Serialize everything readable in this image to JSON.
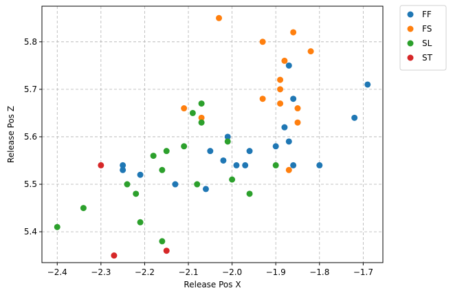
{
  "chart_data": {
    "type": "scatter",
    "title": "",
    "xlabel": "Release Pos X",
    "ylabel": "Release Pos Z",
    "xlim": [
      -2.435,
      -1.655
    ],
    "ylim": [
      5.335,
      5.875
    ],
    "xticks": [
      -2.4,
      -2.3,
      -2.2,
      -2.1,
      -2.0,
      -1.9,
      -1.8,
      -1.7
    ],
    "xtick_labels": [
      "−2.4",
      "−2.3",
      "−2.2",
      "−2.1",
      "−2.0",
      "−1.9",
      "−1.8",
      "−1.7"
    ],
    "yticks": [
      5.4,
      5.5,
      5.6,
      5.7,
      5.8
    ],
    "ytick_labels": [
      "5.4",
      "5.5",
      "5.6",
      "5.7",
      "5.8"
    ],
    "grid": true,
    "legend_position": "outside-top-right",
    "series": [
      {
        "name": "FF",
        "color": "#1f77b4",
        "points": [
          [
            -2.25,
            5.54
          ],
          [
            -2.25,
            5.53
          ],
          [
            -2.21,
            5.52
          ],
          [
            -2.13,
            5.5
          ],
          [
            -2.06,
            5.49
          ],
          [
            -2.05,
            5.57
          ],
          [
            -2.02,
            5.55
          ],
          [
            -2.01,
            5.6
          ],
          [
            -1.99,
            5.54
          ],
          [
            -1.97,
            5.54
          ],
          [
            -1.96,
            5.57
          ],
          [
            -1.9,
            5.58
          ],
          [
            -1.88,
            5.62
          ],
          [
            -1.87,
            5.59
          ],
          [
            -1.87,
            5.75
          ],
          [
            -1.86,
            5.68
          ],
          [
            -1.86,
            5.54
          ],
          [
            -1.8,
            5.54
          ],
          [
            -1.72,
            5.64
          ],
          [
            -1.69,
            5.71
          ]
        ]
      },
      {
        "name": "FS",
        "color": "#ff7f0e",
        "points": [
          [
            -2.11,
            5.66
          ],
          [
            -2.07,
            5.64
          ],
          [
            -2.03,
            5.85
          ],
          [
            -1.93,
            5.8
          ],
          [
            -1.93,
            5.68
          ],
          [
            -1.89,
            5.72
          ],
          [
            -1.89,
            5.7
          ],
          [
            -1.89,
            5.67
          ],
          [
            -1.88,
            5.76
          ],
          [
            -1.87,
            5.53
          ],
          [
            -1.86,
            5.82
          ],
          [
            -1.85,
            5.66
          ],
          [
            -1.85,
            5.63
          ],
          [
            -1.82,
            5.78
          ]
        ]
      },
      {
        "name": "SL",
        "color": "#2ca02c",
        "points": [
          [
            -2.4,
            5.41
          ],
          [
            -2.34,
            5.45
          ],
          [
            -2.24,
            5.5
          ],
          [
            -2.22,
            5.48
          ],
          [
            -2.21,
            5.42
          ],
          [
            -2.18,
            5.56
          ],
          [
            -2.16,
            5.53
          ],
          [
            -2.16,
            5.38
          ],
          [
            -2.15,
            5.57
          ],
          [
            -2.11,
            5.58
          ],
          [
            -2.09,
            5.65
          ],
          [
            -2.08,
            5.5
          ],
          [
            -2.07,
            5.67
          ],
          [
            -2.07,
            5.63
          ],
          [
            -2.01,
            5.59
          ],
          [
            -2.0,
            5.51
          ],
          [
            -1.96,
            5.48
          ],
          [
            -1.9,
            5.54
          ]
        ]
      },
      {
        "name": "ST",
        "color": "#d62728",
        "points": [
          [
            -2.3,
            5.54
          ],
          [
            -2.27,
            5.35
          ],
          [
            -2.15,
            5.36
          ]
        ]
      }
    ]
  }
}
